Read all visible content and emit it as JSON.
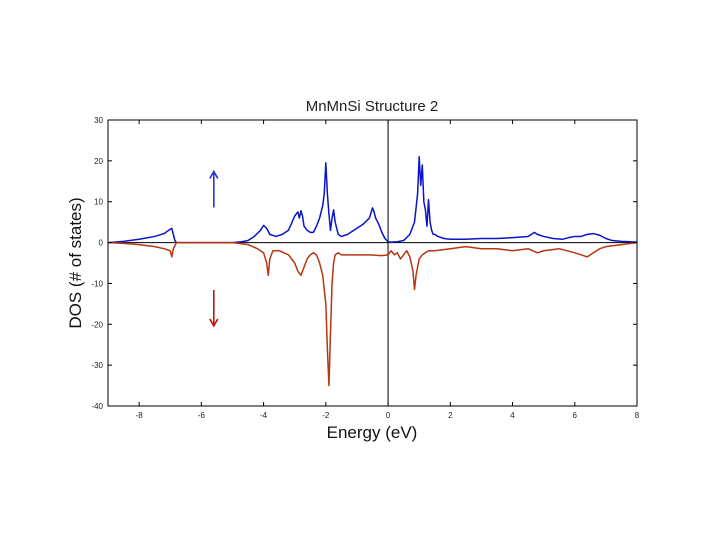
{
  "chart_data": {
    "type": "line",
    "title": "MnMnSi Structure 2",
    "xlabel": "Energy (eV)",
    "ylabel": "DOS (# of states)",
    "xlim": [
      -9,
      8
    ],
    "ylim": [
      -40,
      30
    ],
    "xticks": [
      -8,
      -6,
      -4,
      -2,
      0,
      2,
      4,
      6,
      8
    ],
    "xtick_labels": [
      "-8",
      "-6",
      "-4",
      "-2",
      "0",
      "2",
      "4",
      "6",
      "8"
    ],
    "yticks": [
      -40,
      -30,
      -20,
      -10,
      0,
      10,
      20,
      30
    ],
    "ytick_labels": [
      "-40",
      "-30",
      "-20",
      "-10",
      "0",
      "10",
      "20",
      "30"
    ],
    "grid": false,
    "reference_lines": {
      "vertical_x": 0,
      "horizontal_y": 0
    },
    "annotations": [
      {
        "symbol": "↑",
        "meaning": "spin-up",
        "x": -5.6,
        "y": 13,
        "color": "#2a35d6"
      },
      {
        "symbol": "↓",
        "meaning": "spin-down",
        "x": -5.6,
        "y": -16,
        "color": "#b01c10"
      }
    ],
    "series": [
      {
        "name": "spin-up",
        "color": "#0b14c8",
        "x": [
          -9,
          -8.5,
          -8,
          -7.5,
          -7.2,
          -7.05,
          -6.95,
          -6.9,
          -6.85,
          -6.8,
          -5,
          -4.7,
          -4.5,
          -4.3,
          -4.1,
          -4.0,
          -3.9,
          -3.8,
          -3.6,
          -3.4,
          -3.2,
          -3.0,
          -2.9,
          -2.85,
          -2.8,
          -2.75,
          -2.7,
          -2.6,
          -2.5,
          -2.4,
          -2.3,
          -2.2,
          -2.1,
          -2.05,
          -2.0,
          -1.95,
          -1.9,
          -1.85,
          -1.8,
          -1.75,
          -1.7,
          -1.6,
          -1.5,
          -1.3,
          -1.0,
          -0.8,
          -0.6,
          -0.5,
          -0.45,
          -0.4,
          -0.3,
          -0.2,
          -0.1,
          0,
          0.1,
          0.3,
          0.5,
          0.7,
          0.85,
          0.95,
          1.0,
          1.05,
          1.1,
          1.15,
          1.2,
          1.25,
          1.3,
          1.35,
          1.4,
          1.45,
          1.5,
          1.6,
          1.8,
          2.0,
          2.5,
          3.0,
          3.5,
          4.0,
          4.5,
          4.7,
          4.8,
          5.0,
          5.3,
          5.6,
          5.8,
          6.0,
          6.2,
          6.4,
          6.6,
          6.8,
          7.0,
          7.2,
          7.5,
          7.8,
          8
        ],
        "y": [
          0,
          0.3,
          0.8,
          1.5,
          2.2,
          3.0,
          3.5,
          2.0,
          0.5,
          0,
          0,
          0.2,
          0.5,
          1.5,
          3.0,
          4.2,
          3.5,
          2.0,
          1.5,
          2.0,
          3.0,
          6.5,
          7.5,
          6.0,
          7.8,
          6.5,
          4.0,
          3.0,
          2.5,
          2.5,
          4.0,
          6.0,
          9.0,
          12.0,
          19.5,
          12.0,
          7.0,
          3.0,
          6.0,
          8.0,
          5.0,
          2.0,
          1.5,
          2.0,
          3.5,
          4.5,
          6.0,
          8.5,
          7.5,
          6.0,
          4.5,
          2.5,
          1.0,
          0.2,
          0.1,
          0.2,
          0.5,
          2.0,
          5.0,
          12.0,
          21.0,
          14.0,
          19.0,
          10.0,
          8.0,
          4.0,
          10.5,
          5.0,
          3.0,
          2.0,
          2.0,
          1.5,
          1.0,
          0.8,
          0.8,
          1.0,
          1.0,
          1.2,
          1.5,
          2.5,
          2.0,
          1.5,
          1.0,
          0.8,
          1.2,
          1.5,
          1.5,
          2.0,
          2.2,
          1.8,
          1.0,
          0.5,
          0.3,
          0.2,
          0.1
        ]
      },
      {
        "name": "spin-down",
        "color": "#b73612",
        "x": [
          -9,
          -8.5,
          -8,
          -7.5,
          -7.2,
          -7.0,
          -6.95,
          -6.9,
          -6.8,
          -5,
          -4.5,
          -4.2,
          -4.0,
          -3.9,
          -3.85,
          -3.8,
          -3.7,
          -3.5,
          -3.2,
          -3.0,
          -2.9,
          -2.8,
          -2.7,
          -2.6,
          -2.5,
          -2.4,
          -2.3,
          -2.2,
          -2.1,
          -2.0,
          -1.95,
          -1.9,
          -1.88,
          -1.85,
          -1.8,
          -1.75,
          -1.7,
          -1.6,
          -1.5,
          -1.4,
          -1.2,
          -1.0,
          -0.6,
          -0.2,
          0,
          0.1,
          0.2,
          0.3,
          0.4,
          0.5,
          0.6,
          0.7,
          0.8,
          0.85,
          0.9,
          0.95,
          1.0,
          1.1,
          1.2,
          1.3,
          1.5,
          2.0,
          2.5,
          3.0,
          3.5,
          4.0,
          4.5,
          4.8,
          5.0,
          5.5,
          6.0,
          6.2,
          6.4,
          6.6,
          6.8,
          7.0,
          7.5,
          8
        ],
        "y": [
          0,
          -0.2,
          -0.5,
          -1.0,
          -1.5,
          -2.0,
          -3.5,
          -1.5,
          0,
          0,
          -0.5,
          -1.5,
          -2.5,
          -5.0,
          -8.0,
          -4.0,
          -2.0,
          -2.0,
          -3.0,
          -5.0,
          -7.0,
          -8.0,
          -6.0,
          -4.0,
          -3.0,
          -2.5,
          -3.0,
          -5.0,
          -8.0,
          -15.0,
          -26.0,
          -35.0,
          -30.0,
          -22.0,
          -10.0,
          -5.0,
          -3.0,
          -2.5,
          -3.0,
          -3.0,
          -3.0,
          -3.0,
          -3.0,
          -3.2,
          -3.0,
          -2.0,
          -3.0,
          -2.5,
          -4.0,
          -3.0,
          -2.0,
          -3.5,
          -7.0,
          -11.5,
          -8.0,
          -6.0,
          -4.0,
          -3.0,
          -2.5,
          -2.0,
          -2.0,
          -1.5,
          -1.0,
          -1.5,
          -1.5,
          -2.0,
          -1.5,
          -2.5,
          -2.0,
          -1.5,
          -2.5,
          -3.0,
          -3.5,
          -2.5,
          -1.5,
          -1.0,
          -0.5,
          0
        ]
      }
    ]
  }
}
